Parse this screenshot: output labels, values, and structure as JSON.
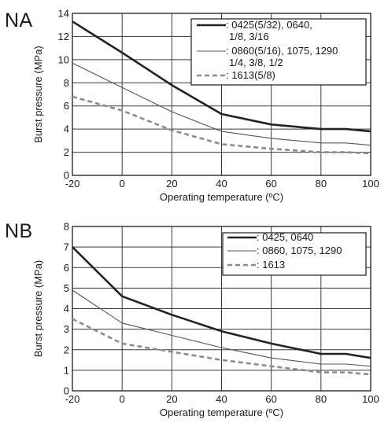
{
  "chart_data": [
    {
      "type": "line",
      "panel_label": "NA",
      "xlabel": "Operating temperature (ºC)",
      "ylabel": "Burst pressure (MPa)",
      "xlim": [
        -20,
        100
      ],
      "ylim": [
        0,
        14
      ],
      "x_ticks": [
        -20,
        0,
        20,
        40,
        60,
        80,
        100
      ],
      "y_ticks": [
        0,
        2,
        4,
        6,
        8,
        10,
        12,
        14
      ],
      "grid": true,
      "legend_position": "top-right",
      "series": [
        {
          "name": ": 0425(5/32), 0640, 1/8, 3/16",
          "legend_lines": [
            ": 0425(5/32), 0640,",
            "1/8, 3/16"
          ],
          "style": "thick-solid",
          "color": "#222222",
          "points": [
            [
              -20,
              13.3
            ],
            [
              0,
              10.6
            ],
            [
              20,
              7.8
            ],
            [
              40,
              5.3
            ],
            [
              60,
              4.4
            ],
            [
              80,
              4.0
            ],
            [
              90,
              4.0
            ],
            [
              100,
              3.8
            ]
          ]
        },
        {
          "name": ": 0860(5/16), 1075, 1290 1/4, 3/8, 1/2",
          "legend_lines": [
            ": 0860(5/16), 1075, 1290",
            "1/4, 3/8, 1/2"
          ],
          "style": "thin-solid",
          "color": "#555555",
          "points": [
            [
              -20,
              9.7
            ],
            [
              0,
              7.6
            ],
            [
              20,
              5.5
            ],
            [
              40,
              3.8
            ],
            [
              60,
              3.2
            ],
            [
              80,
              2.8
            ],
            [
              90,
              2.8
            ],
            [
              100,
              2.6
            ]
          ]
        },
        {
          "name": ": 1613(5/8)",
          "legend_lines": [
            ": 1613(5/8)"
          ],
          "style": "dashed",
          "color": "#8c8c8c",
          "points": [
            [
              -20,
              6.8
            ],
            [
              0,
              5.6
            ],
            [
              20,
              3.9
            ],
            [
              40,
              2.7
            ],
            [
              60,
              2.3
            ],
            [
              80,
              2.0
            ],
            [
              90,
              2.0
            ],
            [
              100,
              1.9
            ]
          ]
        }
      ]
    },
    {
      "type": "line",
      "panel_label": "NB",
      "xlabel": "Operating temperature (ºC)",
      "ylabel": "Burst pressure (MPa)",
      "xlim": [
        -20,
        100
      ],
      "ylim": [
        0,
        8
      ],
      "x_ticks": [
        -20,
        0,
        20,
        40,
        60,
        80,
        100
      ],
      "y_ticks": [
        0,
        1,
        2,
        3,
        4,
        5,
        6,
        7,
        8
      ],
      "grid": true,
      "legend_position": "top-right",
      "series": [
        {
          "name": ": 0425, 0640",
          "legend_lines": [
            ": 0425, 0640"
          ],
          "style": "thick-solid",
          "color": "#222222",
          "points": [
            [
              -20,
              7.0
            ],
            [
              0,
              4.6
            ],
            [
              20,
              3.7
            ],
            [
              40,
              2.9
            ],
            [
              60,
              2.3
            ],
            [
              80,
              1.8
            ],
            [
              90,
              1.8
            ],
            [
              100,
              1.6
            ]
          ]
        },
        {
          "name": ": 0860, 1075, 1290",
          "legend_lines": [
            ": 0860, 1075, 1290"
          ],
          "style": "thin-solid",
          "color": "#555555",
          "points": [
            [
              -20,
              4.9
            ],
            [
              0,
              3.3
            ],
            [
              20,
              2.7
            ],
            [
              40,
              2.1
            ],
            [
              60,
              1.6
            ],
            [
              80,
              1.3
            ],
            [
              90,
              1.3
            ],
            [
              100,
              1.2
            ]
          ]
        },
        {
          "name": ": 1613",
          "legend_lines": [
            ": 1613"
          ],
          "style": "dashed",
          "color": "#8c8c8c",
          "points": [
            [
              -20,
              3.5
            ],
            [
              0,
              2.3
            ],
            [
              20,
              1.9
            ],
            [
              40,
              1.5
            ],
            [
              60,
              1.2
            ],
            [
              80,
              0.9
            ],
            [
              90,
              0.9
            ],
            [
              100,
              0.8
            ]
          ]
        }
      ]
    }
  ]
}
